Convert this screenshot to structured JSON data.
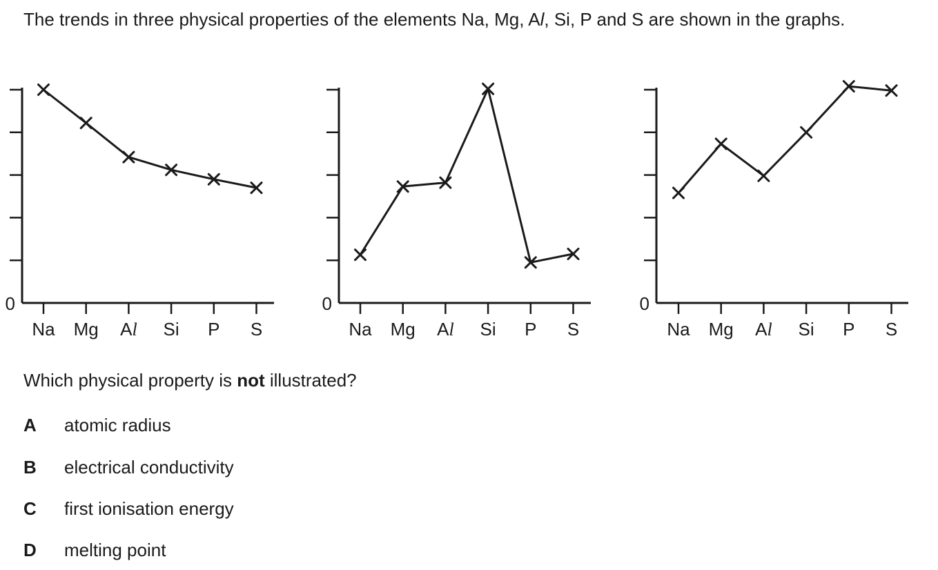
{
  "intro": {
    "part1": "The trends in three physical properties of the elements Na, Mg, A",
    "l_symbol": "l",
    "part2": ", Si, P and S are shown in the graphs."
  },
  "question": {
    "before": "Which physical property is ",
    "emph": "not",
    "after": " illustrated?"
  },
  "options": [
    {
      "letter": "A",
      "text": "atomic radius"
    },
    {
      "letter": "B",
      "text": "electrical conductivity"
    },
    {
      "letter": "C",
      "text": "first ionisation energy"
    },
    {
      "letter": "D",
      "text": "melting point"
    }
  ],
  "chart_data": [
    {
      "type": "line",
      "categories": [
        {
          "main": "Na",
          "italic": ""
        },
        {
          "main": "Mg",
          "italic": ""
        },
        {
          "main": "A",
          "italic": "l"
        },
        {
          "main": "Si",
          "italic": ""
        },
        {
          "main": "P",
          "italic": ""
        },
        {
          "main": "S",
          "italic": ""
        }
      ],
      "values": [
        5.0,
        4.22,
        3.42,
        3.12,
        2.9,
        2.7
      ],
      "ylim": [
        0,
        5
      ],
      "yticks": [
        1,
        2,
        3,
        4,
        5
      ],
      "zero_label": "0",
      "marker": "cross",
      "line_color": "#1a1a1a"
    },
    {
      "type": "line",
      "categories": [
        {
          "main": "Na",
          "italic": ""
        },
        {
          "main": "Mg",
          "italic": ""
        },
        {
          "main": "A",
          "italic": "l"
        },
        {
          "main": "Si",
          "italic": ""
        },
        {
          "main": "P",
          "italic": ""
        },
        {
          "main": "S",
          "italic": ""
        }
      ],
      "values": [
        1.13,
        2.73,
        2.82,
        5.02,
        0.95,
        1.15
      ],
      "ylim": [
        0,
        5
      ],
      "yticks": [
        1,
        2,
        3,
        4,
        5
      ],
      "zero_label": "0",
      "marker": "cross",
      "line_color": "#1a1a1a"
    },
    {
      "type": "line",
      "categories": [
        {
          "main": "Na",
          "italic": ""
        },
        {
          "main": "Mg",
          "italic": ""
        },
        {
          "main": "A",
          "italic": "l"
        },
        {
          "main": "Si",
          "italic": ""
        },
        {
          "main": "P",
          "italic": ""
        },
        {
          "main": "S",
          "italic": ""
        }
      ],
      "values": [
        2.58,
        3.73,
        2.98,
        4.0,
        5.08,
        4.98
      ],
      "ylim": [
        0,
        5
      ],
      "yticks": [
        1,
        2,
        3,
        4,
        5
      ],
      "zero_label": "0",
      "marker": "cross",
      "line_color": "#1a1a1a"
    }
  ]
}
